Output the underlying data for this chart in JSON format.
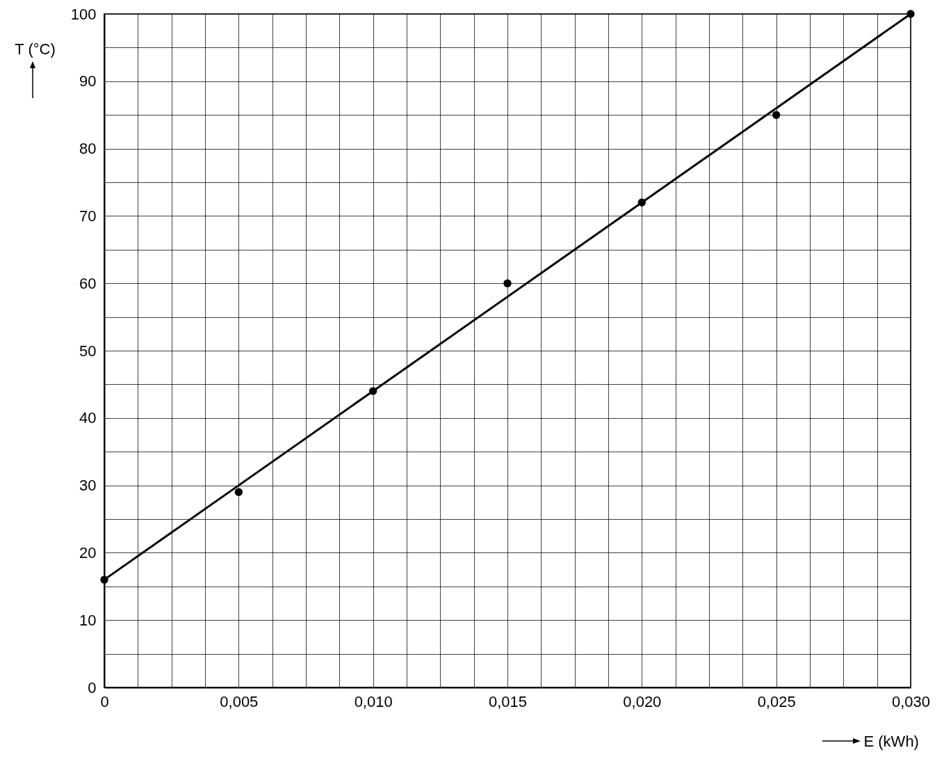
{
  "chart_data": {
    "type": "scatter",
    "xlabel": "E (kWh)",
    "ylabel": "T (°C)",
    "xlim": [
      0,
      0.03
    ],
    "ylim": [
      0,
      100
    ],
    "xticks": [
      0,
      {
        "value": 0.00125,
        "label": null
      },
      {
        "value": 0.0025,
        "label": null
      },
      {
        "value": 0.00375,
        "label": null
      },
      {
        "value": 0.005,
        "label": "0,005"
      },
      {
        "value": 0.00625,
        "label": null
      },
      {
        "value": 0.0075,
        "label": null
      },
      {
        "value": 0.00875,
        "label": null
      },
      {
        "value": 0.01,
        "label": "0,010"
      },
      {
        "value": 0.01125,
        "label": null
      },
      {
        "value": 0.0125,
        "label": null
      },
      {
        "value": 0.01375,
        "label": null
      },
      {
        "value": 0.015,
        "label": "0,015"
      },
      {
        "value": 0.01625,
        "label": null
      },
      {
        "value": 0.0175,
        "label": null
      },
      {
        "value": 0.01875,
        "label": null
      },
      {
        "value": 0.02,
        "label": "0,020"
      },
      {
        "value": 0.02125,
        "label": null
      },
      {
        "value": 0.0225,
        "label": null
      },
      {
        "value": 0.02375,
        "label": null
      },
      {
        "value": 0.025,
        "label": "0,025"
      },
      {
        "value": 0.02625,
        "label": null
      },
      {
        "value": 0.0275,
        "label": null
      },
      {
        "value": 0.02875,
        "label": null
      },
      {
        "value": 0.03,
        "label": "0,030"
      }
    ],
    "yticks": [
      0,
      {
        "value": 5,
        "label": null
      },
      10,
      {
        "value": 15,
        "label": null
      },
      20,
      {
        "value": 25,
        "label": null
      },
      30,
      {
        "value": 35,
        "label": null
      },
      40,
      {
        "value": 45,
        "label": null
      },
      50,
      {
        "value": 55,
        "label": null
      },
      60,
      {
        "value": 65,
        "label": null
      },
      70,
      {
        "value": 75,
        "label": null
      },
      80,
      {
        "value": 85,
        "label": null
      },
      90,
      {
        "value": 95,
        "label": null
      },
      100
    ],
    "grid": true,
    "series": [
      {
        "marker": "circle",
        "color": "#000000",
        "x": [
          0,
          0.005,
          0.01,
          0.015,
          0.02,
          0.025,
          0.03
        ],
        "values": [
          16,
          29,
          44,
          60,
          72,
          85,
          100
        ]
      },
      {
        "type": "line",
        "color": "#000000",
        "x": [
          0,
          0.03
        ],
        "values": [
          16,
          100
        ]
      }
    ]
  }
}
